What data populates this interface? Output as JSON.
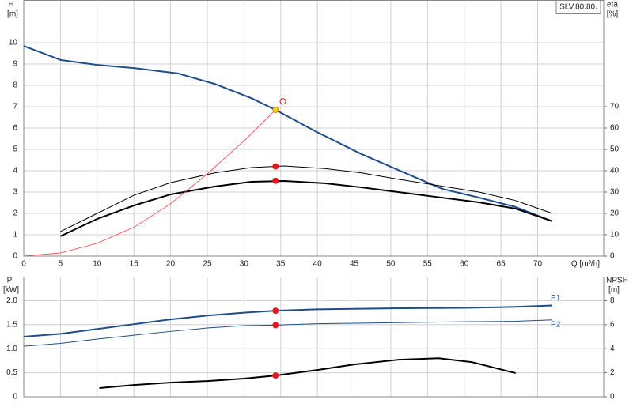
{
  "chart_data": [
    {
      "type": "line",
      "title": "SLV.80.80.",
      "ylabel": "H",
      "yunit": "[m]",
      "y2label": "eta",
      "y2unit": "[%]",
      "xlabel": "Q [m³/h]",
      "xlim": [
        0,
        79
      ],
      "xticks": [
        0,
        5,
        10,
        15,
        20,
        25,
        30,
        35,
        40,
        45,
        50,
        55,
        60,
        65,
        70
      ],
      "ylim": [
        0,
        12
      ],
      "yticks": [
        0,
        1,
        2,
        3,
        4,
        5,
        6,
        7,
        8,
        9,
        10
      ],
      "y2lim": [
        0,
        120
      ],
      "y2ticks": [
        0,
        10,
        20,
        30,
        40,
        50,
        60,
        70
      ],
      "grid": true,
      "series": [
        {
          "color": "#1f4e8c",
          "width": 2,
          "x": [
            0,
            5,
            10,
            15,
            21,
            26,
            31,
            34.3,
            40,
            46,
            51.5,
            57,
            62,
            67,
            72
          ],
          "values": [
            9.85,
            9.19,
            8.96,
            8.81,
            8.56,
            8.07,
            7.4,
            6.85,
            5.8,
            4.78,
            3.96,
            3.15,
            2.74,
            2.3,
            1.63
          ]
        },
        {
          "color": "#000000",
          "width": 1,
          "axis": "y2",
          "x": [
            5,
            10,
            15,
            20,
            26,
            31,
            35.5,
            41,
            46,
            51,
            56,
            62,
            67,
            72
          ],
          "values": [
            11.5,
            20,
            28.5,
            34.4,
            39,
            41.5,
            42.2,
            41,
            39,
            36,
            33.3,
            30,
            26,
            20
          ]
        },
        {
          "color": "#000000",
          "width": 2,
          "axis": "y2",
          "x": [
            5,
            10,
            15,
            20,
            26,
            31,
            35.5,
            41,
            46,
            51,
            56,
            62,
            67,
            72
          ],
          "values": [
            9.3,
            17.4,
            23.7,
            28.9,
            32.6,
            34.8,
            35.2,
            34.1,
            32.2,
            30,
            27.8,
            25.2,
            22.2,
            16.3
          ]
        },
        {
          "color": "#ff3b3b",
          "width": 0.8,
          "x": [
            0,
            5,
            10,
            15,
            20,
            25,
            30,
            34.3
          ],
          "values": [
            0,
            0.15,
            0.6,
            1.35,
            2.45,
            3.85,
            5.4,
            6.85
          ]
        }
      ],
      "points": [
        {
          "x": 34.3,
          "y": 6.85,
          "color": "#ffd21f"
        },
        {
          "x": 35.3,
          "y": 7.25,
          "color": "none"
        },
        {
          "x": 34.3,
          "y": 42,
          "axis": "y2",
          "color": "#e8141e"
        },
        {
          "x": 34.3,
          "y": 35.3,
          "axis": "y2",
          "color": "#e8141e"
        }
      ]
    },
    {
      "type": "line",
      "ylabel": "P",
      "yunit": "[kW]",
      "y2label": "NPSH",
      "y2unit": "[m]",
      "ylim": [
        0,
        2.5
      ],
      "yticks": [
        0,
        0.5,
        {
          "value": 1,
          "label": "1.0"
        },
        1.5,
        {
          "value": 2,
          "label": "2.0"
        }
      ],
      "y2lim": [
        0,
        10
      ],
      "y2ticks": [
        0,
        2,
        4,
        6,
        8
      ],
      "grid": true,
      "series": [
        {
          "name": "P1",
          "color": "#1f4e8c",
          "width": 2,
          "x": [
            0,
            5,
            10,
            15,
            20,
            25,
            30,
            34.3,
            40,
            50,
            60,
            67,
            72
          ],
          "values": [
            1.25,
            1.31,
            1.41,
            1.51,
            1.61,
            1.69,
            1.75,
            1.79,
            1.82,
            1.84,
            1.85,
            1.87,
            1.9
          ]
        },
        {
          "name": "P2",
          "color": "#1f4e8c",
          "width": 1,
          "x": [
            0,
            5,
            10,
            15,
            20,
            25,
            30,
            34.3,
            40,
            50,
            60,
            67,
            72
          ],
          "values": [
            1.05,
            1.11,
            1.2,
            1.28,
            1.36,
            1.43,
            1.48,
            1.49,
            1.52,
            1.54,
            1.56,
            1.57,
            1.6
          ]
        },
        {
          "color": "#000000",
          "width": 2,
          "axis": "y2",
          "x": [
            10.3,
            15,
            20,
            25,
            30,
            34.3,
            40,
            45,
            51,
            56.5,
            61,
            67
          ],
          "values": [
            0.72,
            0.98,
            1.18,
            1.31,
            1.51,
            1.77,
            2.23,
            2.69,
            3.08,
            3.21,
            2.89,
            1.97
          ]
        }
      ],
      "points": [
        {
          "x": 34.3,
          "y": 1.79,
          "color": "#e8141e"
        },
        {
          "x": 34.3,
          "y": 1.49,
          "color": "#e8141e"
        },
        {
          "x": 34.3,
          "y": 1.77,
          "axis": "y2",
          "color": "#e8141e"
        }
      ]
    }
  ]
}
